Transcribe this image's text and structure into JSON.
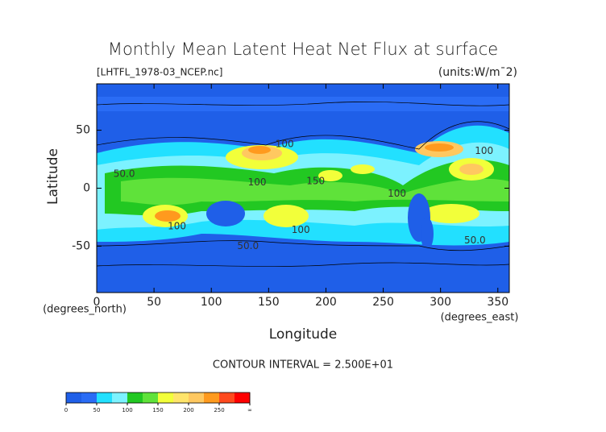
{
  "chart_data": {
    "type": "contour",
    "title": "Monthly Mean Latent Heat Net Flux at surface",
    "subtitle": "[LHTFL_1978-03_NCEP.nc]",
    "units_label": "(units:W/m¯2)",
    "x_label": "Longitude",
    "y_label": "Latitude",
    "x_units": "(degrees_east)",
    "y_units": "(degrees_north)",
    "xlim": [
      0,
      360
    ],
    "ylim": [
      -90,
      90
    ],
    "xticks": [
      0,
      50,
      100,
      150,
      200,
      250,
      300,
      350
    ],
    "yticks": [
      -50,
      0,
      50
    ],
    "contour_interval": "CONTOUR INTERVAL = 2.500E+01",
    "contour_labels": [
      {
        "text": "100",
        "lon": 164,
        "lat": 38
      },
      {
        "text": "50.0",
        "lon": 24,
        "lat": 12
      },
      {
        "text": "150",
        "lon": 191,
        "lat": 6
      },
      {
        "text": "100",
        "lon": 140,
        "lat": 5
      },
      {
        "text": "100",
        "lon": 262,
        "lat": -5
      },
      {
        "text": "100",
        "lon": 338,
        "lat": 32
      },
      {
        "text": "100",
        "lon": 178,
        "lat": -36
      },
      {
        "text": "100",
        "lon": 70,
        "lat": -33
      },
      {
        "text": "50.0",
        "lon": 132,
        "lat": -50
      },
      {
        "text": "50.0",
        "lon": 330,
        "lat": -45
      }
    ],
    "colorbar": {
      "colors": [
        "#1f5fe8",
        "#2a6cf5",
        "#22e0ff",
        "#7cf2ff",
        "#22c822",
        "#5fe23a",
        "#f2ff3a",
        "#ffe46a",
        "#ffc860",
        "#ff9a1e",
        "#ff4a1e",
        "#ff0000"
      ],
      "labels": [
        "0",
        "50",
        "100",
        "150",
        "200",
        "250",
        "∞"
      ]
    }
  }
}
